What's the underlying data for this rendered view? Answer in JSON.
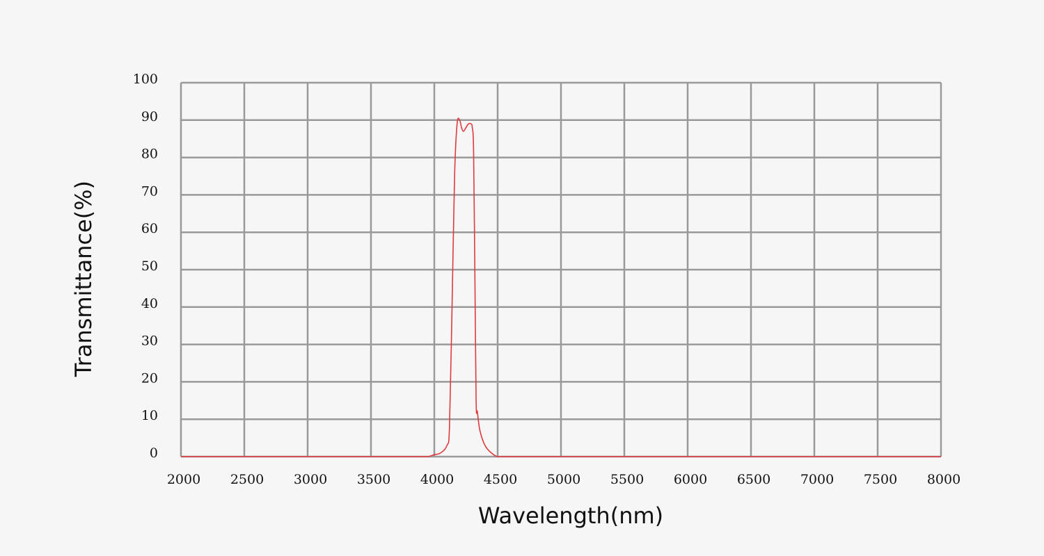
{
  "chart_data": {
    "type": "line",
    "title": "",
    "xlabel": "Wavelength(nm)",
    "ylabel": "Transmittance(%)",
    "xlim": [
      2000,
      8000
    ],
    "ylim": [
      0,
      100
    ],
    "x_ticks": [
      2000,
      2500,
      3000,
      3500,
      4000,
      4500,
      5000,
      5500,
      6000,
      6500,
      7000,
      7500,
      8000
    ],
    "y_ticks": [
      0,
      10,
      20,
      30,
      40,
      50,
      60,
      70,
      80,
      90,
      100
    ],
    "grid": true,
    "colors": {
      "series": "#e0393e",
      "grid": "#999999",
      "background": "#f6f6f6"
    },
    "series": [
      {
        "name": "",
        "x": [
          2000,
          2500,
          3000,
          3500,
          3900,
          3950,
          4000,
          4050,
          4100,
          4120,
          4140,
          4160,
          4180,
          4200,
          4215,
          4230,
          4250,
          4270,
          4290,
          4300,
          4310,
          4320,
          4330,
          4340,
          4360,
          4400,
          4450,
          4500,
          4550,
          5000,
          6000,
          7000,
          8000
        ],
        "y": [
          0,
          0,
          0,
          0,
          0,
          0,
          0.5,
          1,
          3,
          8,
          40,
          75,
          89,
          90,
          88,
          87,
          88,
          89,
          89,
          88,
          82,
          50,
          15,
          12,
          7,
          3,
          1,
          0,
          0,
          0,
          0,
          0,
          0
        ]
      }
    ]
  }
}
